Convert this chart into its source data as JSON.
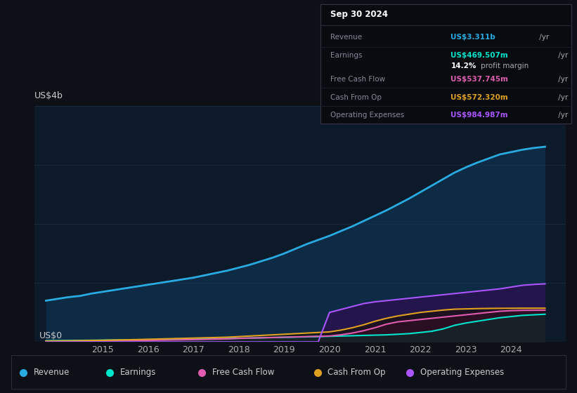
{
  "bg_color": "#0d1117",
  "chart_bg": "#0d1a2a",
  "ylabel": "US$4b",
  "y0label": "US$0",
  "years": [
    2013.75,
    2014,
    2014.25,
    2014.5,
    2014.75,
    2015,
    2015.25,
    2015.5,
    2015.75,
    2016,
    2016.25,
    2016.5,
    2016.75,
    2017,
    2017.25,
    2017.5,
    2017.75,
    2018,
    2018.25,
    2018.5,
    2018.75,
    2019,
    2019.25,
    2019.5,
    2019.75,
    2020,
    2020.25,
    2020.5,
    2020.75,
    2021,
    2021.25,
    2021.5,
    2021.75,
    2022,
    2022.25,
    2022.5,
    2022.75,
    2023,
    2023.25,
    2023.5,
    2023.75,
    2024,
    2024.25,
    2024.5,
    2024.75
  ],
  "revenue": [
    0.7,
    0.73,
    0.76,
    0.78,
    0.82,
    0.85,
    0.88,
    0.91,
    0.94,
    0.97,
    1.0,
    1.03,
    1.06,
    1.09,
    1.13,
    1.17,
    1.21,
    1.26,
    1.31,
    1.37,
    1.43,
    1.5,
    1.58,
    1.66,
    1.73,
    1.8,
    1.88,
    1.96,
    2.05,
    2.14,
    2.23,
    2.33,
    2.43,
    2.54,
    2.65,
    2.76,
    2.87,
    2.96,
    3.04,
    3.11,
    3.18,
    3.22,
    3.26,
    3.29,
    3.311
  ],
  "earnings": [
    0.02,
    0.022,
    0.024,
    0.026,
    0.028,
    0.03,
    0.032,
    0.034,
    0.036,
    0.038,
    0.04,
    0.042,
    0.044,
    0.046,
    0.05,
    0.054,
    0.058,
    0.062,
    0.066,
    0.07,
    0.074,
    0.078,
    0.082,
    0.086,
    0.09,
    0.095,
    0.1,
    0.105,
    0.11,
    0.115,
    0.12,
    0.13,
    0.14,
    0.16,
    0.18,
    0.22,
    0.28,
    0.32,
    0.35,
    0.38,
    0.41,
    0.43,
    0.45,
    0.46,
    0.4695
  ],
  "free_cash_flow": [
    0.01,
    0.012,
    0.013,
    0.015,
    0.016,
    0.018,
    0.02,
    0.022,
    0.025,
    0.027,
    0.03,
    0.033,
    0.036,
    0.04,
    0.044,
    0.048,
    0.052,
    0.06,
    0.065,
    0.07,
    0.075,
    0.08,
    0.085,
    0.09,
    0.095,
    0.1,
    0.12,
    0.15,
    0.19,
    0.24,
    0.3,
    0.34,
    0.36,
    0.38,
    0.4,
    0.42,
    0.44,
    0.46,
    0.48,
    0.5,
    0.52,
    0.53,
    0.535,
    0.537,
    0.5377
  ],
  "cash_from_op": [
    0.015,
    0.017,
    0.019,
    0.022,
    0.025,
    0.028,
    0.032,
    0.036,
    0.04,
    0.045,
    0.05,
    0.055,
    0.06,
    0.065,
    0.07,
    0.075,
    0.08,
    0.09,
    0.1,
    0.11,
    0.12,
    0.13,
    0.14,
    0.15,
    0.16,
    0.17,
    0.2,
    0.24,
    0.29,
    0.35,
    0.4,
    0.44,
    0.47,
    0.5,
    0.52,
    0.54,
    0.555,
    0.56,
    0.565,
    0.568,
    0.57,
    0.571,
    0.572,
    0.5723,
    0.5723
  ],
  "op_expenses": [
    0.0,
    0.0,
    0.0,
    0.0,
    0.0,
    0.0,
    0.0,
    0.0,
    0.0,
    0.0,
    0.0,
    0.0,
    0.0,
    0.0,
    0.0,
    0.0,
    0.0,
    0.0,
    0.0,
    0.0,
    0.0,
    0.0,
    0.0,
    0.0,
    0.0,
    0.5,
    0.55,
    0.6,
    0.65,
    0.68,
    0.7,
    0.72,
    0.74,
    0.76,
    0.78,
    0.8,
    0.82,
    0.84,
    0.86,
    0.88,
    0.9,
    0.93,
    0.96,
    0.975,
    0.985
  ],
  "revenue_color": "#29abe2",
  "revenue_fill": "#0d3a5c",
  "earnings_color": "#00e5cc",
  "fcf_color": "#e05cb0",
  "cashop_color": "#e0a020",
  "opex_color": "#aa55ff",
  "info_box": {
    "date": "Sep 30 2024",
    "revenue_label": "Revenue",
    "revenue_value": "US$3.311b",
    "revenue_color": "#29abe2",
    "earnings_label": "Earnings",
    "earnings_value": "US$469.507m",
    "earnings_color": "#00e5cc",
    "margin_pct": "14.2%",
    "margin_text": "profit margin",
    "fcf_label": "Free Cash Flow",
    "fcf_value": "US$537.745m",
    "fcf_color": "#e05cb0",
    "cashop_label": "Cash From Op",
    "cashop_value": "US$572.320m",
    "cashop_color": "#e0a020",
    "opex_label": "Operating Expenses",
    "opex_value": "US$984.987m",
    "opex_color": "#aa55ff"
  },
  "legend": [
    {
      "label": "Revenue",
      "color": "#29abe2"
    },
    {
      "label": "Earnings",
      "color": "#00e5cc"
    },
    {
      "label": "Free Cash Flow",
      "color": "#e05cb0"
    },
    {
      "label": "Cash From Op",
      "color": "#e0a020"
    },
    {
      "label": "Operating Expenses",
      "color": "#aa55ff"
    }
  ],
  "xticks": [
    2015,
    2016,
    2017,
    2018,
    2019,
    2020,
    2021,
    2022,
    2023,
    2024
  ],
  "ylim": [
    0,
    4.0
  ],
  "xlim": [
    2013.5,
    2025.2
  ]
}
